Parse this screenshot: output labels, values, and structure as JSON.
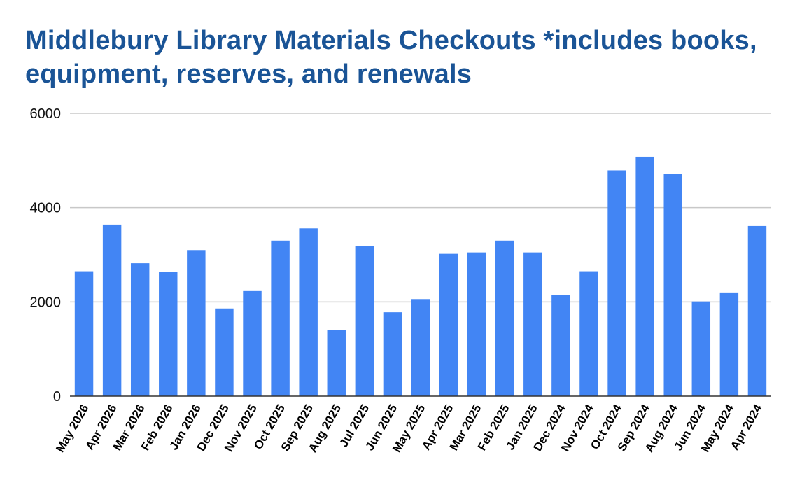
{
  "chart_data": {
    "type": "bar",
    "title": "Middlebury Library Materials Checkouts *includes books, equipment, reserves, and renewals",
    "xlabel": "",
    "ylabel": "",
    "ylim": [
      0,
      6000
    ],
    "yticks": [
      0,
      2000,
      4000,
      6000
    ],
    "grid": true,
    "legend": "none",
    "bar_color": "#4285f4",
    "title_color": "#1a5496",
    "categories": [
      "May 2026",
      "Apr 2026",
      "Mar 2026",
      "Feb 2026",
      "Jan 2026",
      "Dec 2025",
      "Nov 2025",
      "Oct 2025",
      "Sep 2025",
      "Aug 2025",
      "Jul 2025",
      "Jun 2025",
      "May 2025",
      "Apr 2025",
      "Mar 2025",
      "Feb 2025",
      "Jan 2025",
      "Dec 2024",
      "Nov 2024",
      "Oct 2024",
      "Sep 2024",
      "Aug 2024",
      "Jun 2024",
      "May 2024",
      "Apr 2024"
    ],
    "values": [
      2650,
      3640,
      2820,
      2630,
      3100,
      1860,
      2230,
      3300,
      3560,
      1410,
      3190,
      1780,
      2060,
      3020,
      3050,
      3300,
      3050,
      2150,
      2650,
      4790,
      5080,
      4720,
      2010,
      2200,
      3610
    ]
  }
}
